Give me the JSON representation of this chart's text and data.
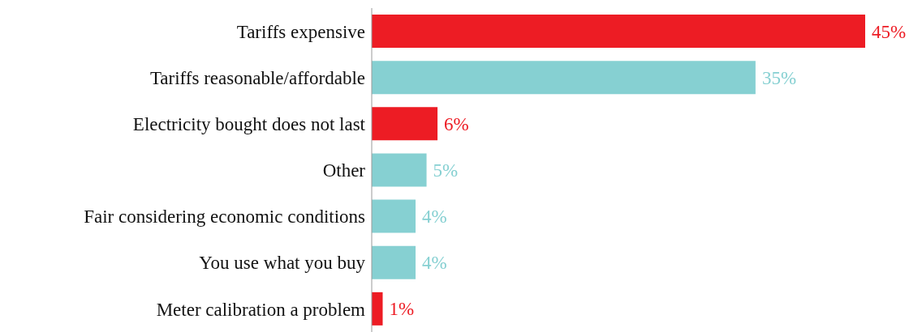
{
  "chart_data": {
    "type": "bar",
    "orientation": "horizontal",
    "categories": [
      "Tariffs expensive",
      "Tariffs reasonable/affordable",
      "Electricity bought does not last",
      "Other",
      "Fair considering economic conditions",
      "You use what you buy",
      "Meter calibration a problem"
    ],
    "values": [
      45,
      35,
      6,
      5,
      4,
      4,
      1
    ],
    "colors": [
      "#ed1c24",
      "#86d0d2",
      "#ed1c24",
      "#86d0d2",
      "#86d0d2",
      "#86d0d2",
      "#ed1c24"
    ],
    "value_labels": [
      "45%",
      "35%",
      "6%",
      "5%",
      "4%",
      "4%",
      "1%"
    ]
  }
}
